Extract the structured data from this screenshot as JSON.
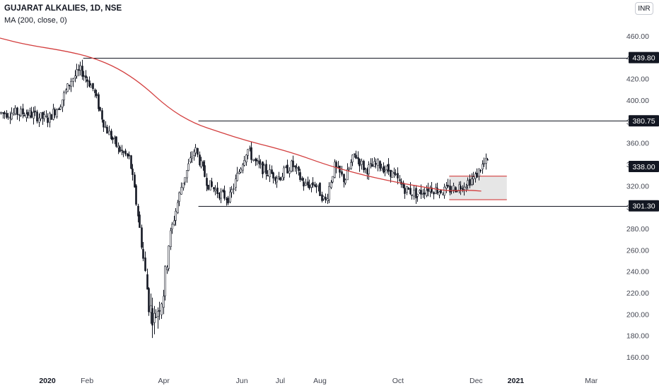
{
  "header": {
    "title": "GUJARAT ALKALIES, 1D, NSE",
    "indicator": "MA (200, close, 0)",
    "currency": "INR"
  },
  "colors": {
    "candle": "#131722",
    "ma": "#d33f3f",
    "level_line": "#131722",
    "box_border": "#d33f3f",
    "box_fill": "#e6e6e6",
    "price_label_bg": "#131722",
    "price_label_text": "#ffffff",
    "axis_text": "#434651"
  },
  "chart_data": {
    "type": "candlestick",
    "title": "GUJARAT ALKALIES, 1D, NSE",
    "y_axis": {
      "ticks": [
        "160.00",
        "180.00",
        "200.00",
        "220.00",
        "240.00",
        "260.00",
        "280.00",
        "300.00",
        "320.00",
        "340.00",
        "360.00",
        "380.00",
        "400.00",
        "420.00",
        "440.00",
        "460.00"
      ],
      "range": [
        153,
        472
      ]
    },
    "x_axis": {
      "ticks": [
        {
          "label": "2020",
          "date": "2020-01-01",
          "bold": true
        },
        {
          "label": "Feb",
          "date": "2020-02-01"
        },
        {
          "label": "Apr",
          "date": "2020-04-01"
        },
        {
          "label": "Jun",
          "date": "2020-06-01"
        },
        {
          "label": "Jul",
          "date": "2020-07-01"
        },
        {
          "label": "Aug",
          "date": "2020-08-01"
        },
        {
          "label": "Oct",
          "date": "2020-10-01"
        },
        {
          "label": "Dec",
          "date": "2020-12-01"
        },
        {
          "label": "2021",
          "date": "2021-01-01",
          "bold": true
        },
        {
          "label": "Mar",
          "date": "2021-03-01"
        }
      ]
    },
    "price_series": {
      "name": "GUJARAT ALKALIES",
      "x": [
        "2019-12-15",
        "2020-01-01",
        "2020-01-10",
        "2020-01-20",
        "2020-01-27",
        "2020-02-05",
        "2020-02-15",
        "2020-02-25",
        "2020-03-05",
        "2020-03-12",
        "2020-03-20",
        "2020-03-24",
        "2020-03-31",
        "2020-04-05",
        "2020-04-15",
        "2020-04-25",
        "2020-05-05",
        "2020-05-15",
        "2020-05-22",
        "2020-05-29",
        "2020-06-05",
        "2020-06-12",
        "2020-06-20",
        "2020-06-30",
        "2020-07-10",
        "2020-07-20",
        "2020-07-28",
        "2020-08-05",
        "2020-08-12",
        "2020-08-20",
        "2020-08-28",
        "2020-09-05",
        "2020-09-15",
        "2020-09-25",
        "2020-10-05",
        "2020-10-15",
        "2020-10-25",
        "2020-11-05",
        "2020-11-15",
        "2020-11-22",
        "2020-11-30",
        "2020-12-05",
        "2020-12-10"
      ],
      "values": [
        388,
        382,
        395,
        420,
        428,
        412,
        375,
        355,
        345,
        290,
        210,
        195,
        218,
        270,
        322,
        355,
        322,
        312,
        308,
        332,
        355,
        340,
        333,
        328,
        340,
        320,
        322,
        305,
        338,
        325,
        350,
        335,
        340,
        333,
        318,
        312,
        318,
        315,
        318,
        322,
        328,
        338,
        343
      ]
    },
    "ma_series": {
      "name": "MA (200, close, 0)",
      "x": [
        "2019-11-15",
        "2019-12-15",
        "2020-01-15",
        "2020-02-05",
        "2020-02-25",
        "2020-03-15",
        "2020-04-05",
        "2020-04-25",
        "2020-05-15",
        "2020-06-05",
        "2020-06-25",
        "2020-07-15",
        "2020-08-05",
        "2020-08-25",
        "2020-09-15",
        "2020-10-05",
        "2020-10-25",
        "2020-11-10",
        "2020-11-25",
        "2020-12-05"
      ],
      "values": [
        458,
        452,
        446,
        440,
        430,
        415,
        392,
        378,
        370,
        362,
        356,
        349,
        340,
        333,
        327,
        322,
        318,
        315,
        316,
        315
      ]
    },
    "annotations": {
      "levels": [
        {
          "label": "439.80",
          "value": 439.8,
          "from": "2020-01-29"
        },
        {
          "label": "380.75",
          "value": 380.75,
          "from": "2020-04-28"
        },
        {
          "label": "338.00",
          "value": 338.0,
          "from": null
        },
        {
          "label": "301.30",
          "value": 301.3,
          "from": "2020-04-28"
        }
      ],
      "box": {
        "x0": "2020-11-10",
        "x1": "2020-12-25",
        "y0": 307,
        "y1": 329
      }
    }
  }
}
